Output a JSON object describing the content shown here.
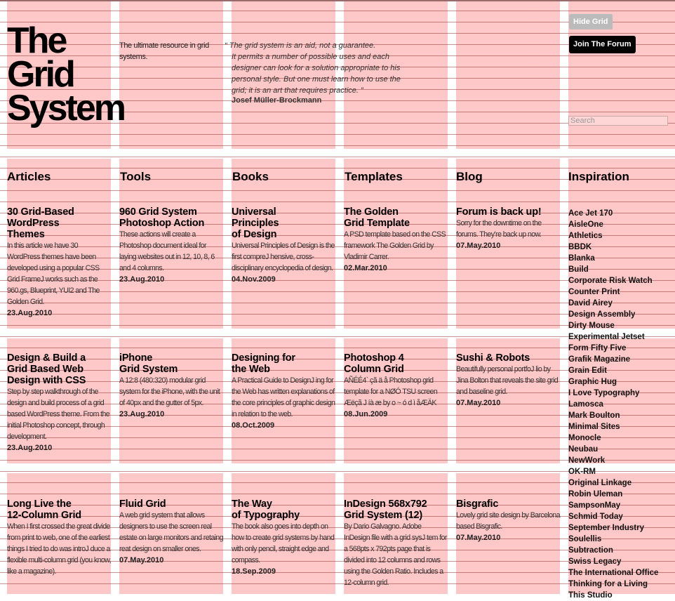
{
  "header": {
    "logo_lines": [
      "The",
      "Grid",
      "System"
    ],
    "tagline": "The ultimate resource in grid systems.",
    "quote_lines": [
      "“ The grid system is an aid, not a guarantee.",
      "It permits a number of possible uses and each",
      "designer can look for a solution appropriate to his",
      "personal style. But one must learn how to use the",
      "grid; it is an art that requires practice. ”"
    ],
    "quote_author": "Josef Müller-Brockmann",
    "hide_grid_label": "Hide Grid",
    "join_forum_label": "Join The Forum",
    "search_placeholder": "Search"
  },
  "sections": [
    {
      "heading": "Articles",
      "items": [
        {
          "title": [
            "30 Grid-Based",
            "WordPress",
            "Themes"
          ],
          "desc": "In this article we have 30 WordPress themes have been developed using a popular CSS Grid FrameJ works such as the 960.gs, Blueprint, YUI2 and The Golden Grid.",
          "date": "23.Aug.2010"
        },
        {
          "title": [
            "Design & Build a",
            "Grid Based Web",
            "Design with CSS"
          ],
          "desc": "Step by step walkthrough of the design and build process of a grid based WordPress theme. From the initial Photoshop concept, through development.",
          "date": "23.Aug.2010"
        },
        {
          "title": [
            "Long Live the",
            "12-Column Grid"
          ],
          "desc": "When I first crossed the great divide from print to web, one of the earliest things I tried to do was introJ duce a flexible multi-column grid (you know, like a magazine).",
          "date": ""
        }
      ]
    },
    {
      "heading": "Tools",
      "items": [
        {
          "title": [
            "960 Grid System",
            "Photoshop Action"
          ],
          "desc": "These actions will create a Photoshop document ideal for laying websites out in 12, 10, 8, 6 and 4 columns.",
          "date": "23.Aug.2010"
        },
        {
          "title": [
            "iPhone",
            "Grid System"
          ],
          "desc": "A 12:8 (480:320) modular grid system for the iPhone, with the unit of 40px and the gutter of 5px.",
          "date": "23.Aug.2010"
        },
        {
          "title": [
            "Fluid Grid"
          ],
          "desc": "A web grid system that allows designers to use the screen real estate on large monitors and retaing reat design on smaller ones.",
          "date": "07.May.2010"
        }
      ]
    },
    {
      "heading": "Books",
      "items": [
        {
          "title": [
            "Universal",
            "Principles",
            "of Design"
          ],
          "desc": "Universal Principles of Design is the first compreJ hensive, cross-disciplinary encyclopedia of design.",
          "date": "04.Nov.2009"
        },
        {
          "title": [
            "Designing for",
            "the Web"
          ],
          "desc": "A Practical Guide to DesignJ ing for the Web has written explanations of the core principles of graphic design in relation to the web.",
          "date": "08.Oct.2009"
        },
        {
          "title": [
            "The Way",
            "of Typography"
          ],
          "desc": "The book also goes into depth on how to create grid systems by hand with only pencil, straight edge and compass.",
          "date": "18.Sep.2009"
        }
      ]
    },
    {
      "heading": "Templates",
      "items": [
        {
          "title": [
            "The Golden",
            "Grid Template"
          ],
          "desc": "A PSD template based on the CSS framework The Golden Grid by Vladimir Carrer.",
          "date": "02.Mar.2010"
        },
        {
          "title": [
            "Photoshop 4",
            "Column Grid"
          ],
          "desc": "AÑÉÉ4` çã ä å Photoshop grid template for a NØÓ TSU screen Æëçã J íà æ by o ~ ó d ì åÆÄK",
          "date": "08.Jun.2009"
        },
        {
          "title": [
            "InDesign 568x792",
            "Grid System (12)"
          ],
          "desc": "By Dario Galvagno. Adobe InDesign file with a grid sysJ tem for a 568pts x 792pts page that is divided into 12 columns and rows using the Golden Ratio. Includes a 12-column grid.",
          "date": ""
        }
      ]
    },
    {
      "heading": "Blog",
      "items": [
        {
          "title": [
            "Forum is back up!"
          ],
          "desc": "Sorry for the downtime on the forums. They’re back up now.",
          "date": "07.May.2010"
        },
        {
          "title": [
            "Sushi & Robots"
          ],
          "desc": "Beautifully personal portfoJ lio by Jina Bolton that reveals the site grid and baseline grid.",
          "date": "07.May.2010"
        },
        {
          "title": [
            "Bisgrafic"
          ],
          "desc": "Lovely grid site design by Barcelona based Bisgrafic.",
          "date": "07.May.2010"
        }
      ]
    }
  ],
  "inspiration": {
    "heading": "Inspiration",
    "items": [
      "Ace Jet 170",
      "AisleOne",
      "Athletics",
      "BBDK",
      "Blanka",
      "Build",
      "Corporate Risk Watch",
      "Counter Print",
      "David Airey",
      "Design Assembly",
      "Dirty Mouse",
      "Experimental Jetset",
      "Form Fifty Five",
      "Grafik Magazine",
      "Grain Edit",
      "Graphic Hug",
      "I Love Typography",
      "Lamosca",
      "Mark Boulton",
      "Minimal Sites",
      "Monocle",
      "Neubau",
      "NewWork",
      "OK-RM",
      "Original Linkage",
      "Robin Uleman",
      "SampsonMay",
      "Schmid Today",
      "September Industry",
      "Soulellis",
      "Subtraction",
      "Swiss Legacy",
      "The International Office",
      "Thinking for a Living",
      "This Studio"
    ]
  }
}
